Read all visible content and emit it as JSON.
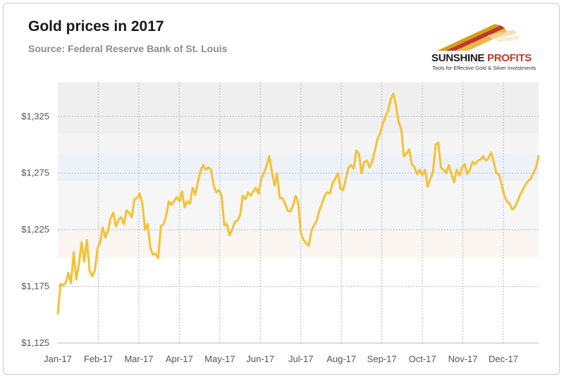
{
  "chart_data": {
    "type": "line",
    "title": "Gold prices in 2017",
    "subtitle": "Source: Federal Reserve Bank of St. Louis",
    "xlabel": "",
    "ylabel": "",
    "ylim": [
      1125,
      1355
    ],
    "y_ticks": [
      1125,
      1175,
      1225,
      1275,
      1325
    ],
    "y_tick_labels": [
      "$1,125",
      "$1,175",
      "$1,225",
      "$1,275",
      "$1,325"
    ],
    "x_tick_labels": [
      "Jan-17",
      "Feb-17",
      "Mar-17",
      "Apr-17",
      "May-17",
      "Jun-17",
      "Jul-17",
      "Aug-17",
      "Sep-17",
      "Oct-17",
      "Nov-17",
      "Dec-17"
    ],
    "grid": true,
    "series_color": "#f5c132",
    "values": [
      1151,
      1177,
      1176,
      1178,
      1187,
      1178,
      1205,
      1181,
      1195,
      1214,
      1197,
      1216,
      1189,
      1184,
      1189,
      1208,
      1214,
      1227,
      1218,
      1224,
      1235,
      1240,
      1228,
      1234,
      1236,
      1230,
      1242,
      1240,
      1236,
      1252,
      1253,
      1257,
      1248,
      1225,
      1230,
      1209,
      1203,
      1204,
      1200,
      1228,
      1230,
      1237,
      1250,
      1247,
      1250,
      1254,
      1250,
      1259,
      1245,
      1250,
      1248,
      1262,
      1256,
      1267,
      1277,
      1282,
      1278,
      1280,
      1278,
      1264,
      1258,
      1260,
      1255,
      1229,
      1230,
      1220,
      1225,
      1232,
      1233,
      1238,
      1255,
      1252,
      1258,
      1255,
      1259,
      1262,
      1257,
      1270,
      1275,
      1281,
      1290,
      1277,
      1264,
      1274,
      1253,
      1253,
      1248,
      1242,
      1241,
      1246,
      1255,
      1249,
      1222,
      1216,
      1213,
      1211,
      1224,
      1229,
      1233,
      1242,
      1248,
      1255,
      1258,
      1257,
      1266,
      1270,
      1275,
      1261,
      1260,
      1270,
      1280,
      1282,
      1279,
      1295,
      1292,
      1275,
      1285,
      1286,
      1280,
      1285,
      1295,
      1305,
      1310,
      1318,
      1325,
      1330,
      1340,
      1345,
      1335,
      1320,
      1314,
      1290,
      1292,
      1296,
      1283,
      1280,
      1274,
      1278,
      1273,
      1278,
      1263,
      1270,
      1276,
      1300,
      1302,
      1280,
      1278,
      1275,
      1282,
      1274,
      1267,
      1278,
      1273,
      1280,
      1283,
      1274,
      1278,
      1285,
      1283,
      1286,
      1287,
      1290,
      1286,
      1288,
      1293,
      1285,
      1275,
      1274,
      1265,
      1255,
      1250,
      1248,
      1243,
      1245,
      1250,
      1256,
      1260,
      1265,
      1268,
      1270,
      1275,
      1280,
      1290
    ]
  },
  "logo": {
    "name_main": "SUNSHINE",
    "name_accent": "PROFITS",
    "tagline": "Tools for Effective Gold & Silver Investments"
  }
}
